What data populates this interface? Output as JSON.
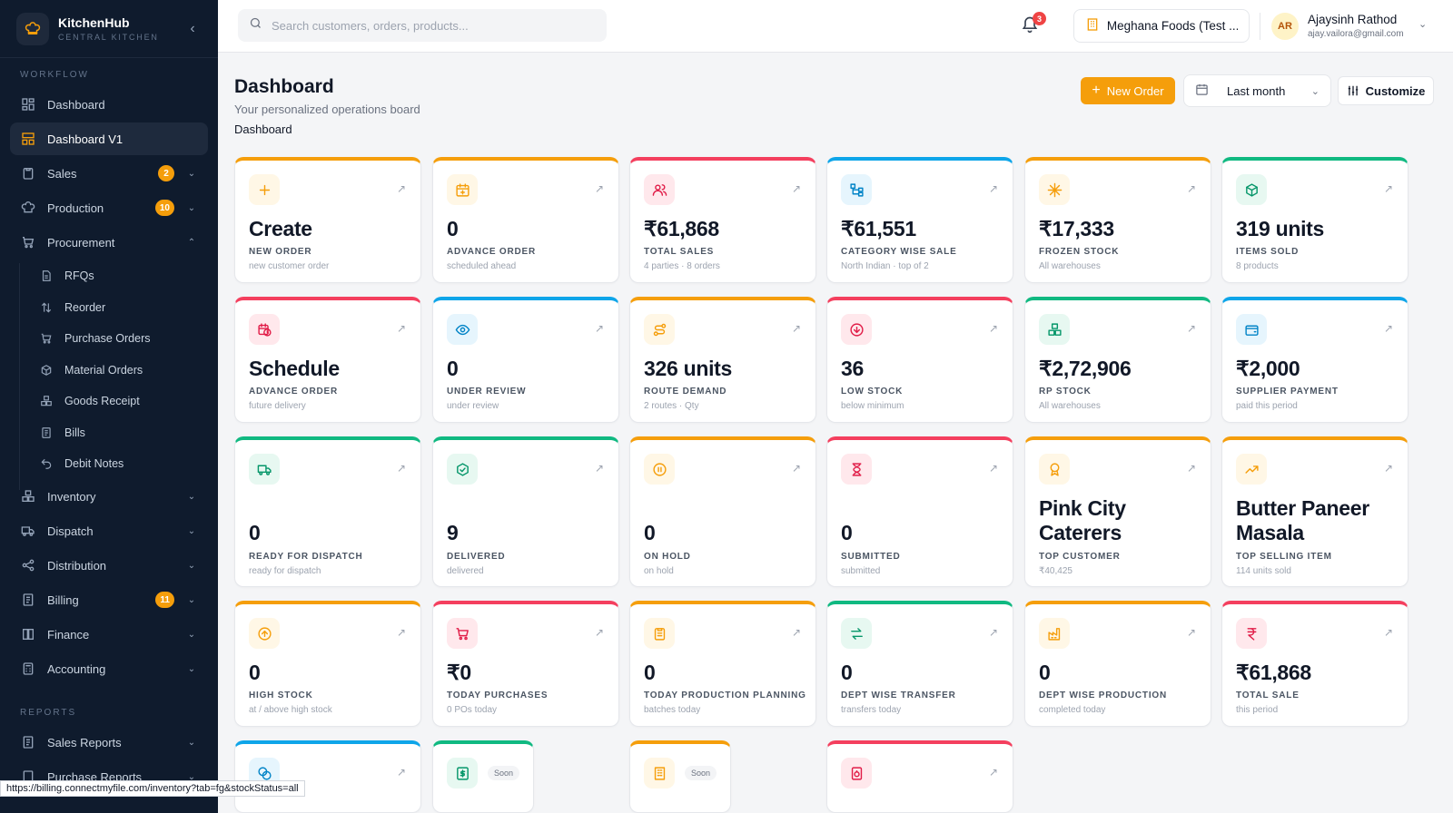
{
  "brand": {
    "name": "KitchenHub",
    "sub": "CENTRAL KITCHEN"
  },
  "sidebar": {
    "workflow_label": "WORKFLOW",
    "reports_label": "REPORTS",
    "items": [
      {
        "label": "Dashboard",
        "icon": "grid-icon"
      },
      {
        "label": "Dashboard V1",
        "icon": "layout-icon"
      },
      {
        "label": "Sales",
        "icon": "clipboard-icon",
        "badge": "2"
      },
      {
        "label": "Production",
        "icon": "chef-hat-icon",
        "badge": "10"
      },
      {
        "label": "Procurement",
        "icon": "cart-icon"
      },
      {
        "label": "Inventory",
        "icon": "boxes-icon"
      },
      {
        "label": "Dispatch",
        "icon": "truck-icon"
      },
      {
        "label": "Distribution",
        "icon": "share-icon"
      },
      {
        "label": "Billing",
        "icon": "receipt-icon",
        "badge": "11"
      },
      {
        "label": "Finance",
        "icon": "book-icon"
      },
      {
        "label": "Accounting",
        "icon": "calculator-icon"
      }
    ],
    "procurement_sub": [
      "RFQs",
      "Reorder",
      "Purchase Orders",
      "Material Orders",
      "Goods Receipt",
      "Bills",
      "Debit Notes"
    ],
    "reports": [
      "Sales Reports",
      "Purchase Reports"
    ]
  },
  "header": {
    "search_placeholder": "Search customers, orders, products...",
    "notifications": "3",
    "org": "Meghana Foods (Test ...",
    "avatar": "AR",
    "user_name": "Ajaysinh Rathod",
    "user_email": "ajay.vailora@gmail.com"
  },
  "page": {
    "title": "Dashboard",
    "subtitle": "Your personalized operations board",
    "breadcrumb": "Dashboard",
    "new_order": "New Order",
    "date_range": "Last month",
    "customize": "Customize"
  },
  "colors": {
    "orange": "#f59e0b",
    "red": "#f43f5e",
    "blue": "#0ea5e9",
    "green": "#10b981",
    "sidebar": "#0f1b2d"
  },
  "cards": [
    {
      "value": "Create",
      "label": "NEW ORDER",
      "sub": "new customer order",
      "accent": "orange",
      "icon": "plus-icon"
    },
    {
      "value": "0",
      "label": "ADVANCE ORDER",
      "sub": "scheduled ahead",
      "accent": "orange",
      "icon": "calendar-plus-icon"
    },
    {
      "value": "₹61,868",
      "label": "TOTAL SALES",
      "sub": "4 parties · 8 orders",
      "accent": "red",
      "icon": "users-icon"
    },
    {
      "value": "₹61,551",
      "label": "CATEGORY WISE SALE",
      "sub": "North Indian · top of 2",
      "accent": "blue",
      "icon": "tree-icon"
    },
    {
      "value": "₹17,333",
      "label": "FROZEN STOCK",
      "sub": "All warehouses",
      "accent": "orange",
      "icon": "snowflake-icon"
    },
    {
      "value": "319 units",
      "label": "ITEMS SOLD",
      "sub": "8 products",
      "accent": "green",
      "icon": "package-icon"
    },
    {
      "value": "Schedule",
      "label": "ADVANCE ORDER",
      "sub": "future delivery",
      "accent": "red",
      "icon": "calendar-clock-icon"
    },
    {
      "value": "0",
      "label": "UNDER REVIEW",
      "sub": "under review",
      "accent": "blue",
      "icon": "eye-icon"
    },
    {
      "value": "326 units",
      "label": "ROUTE DEMAND",
      "sub": "2 routes · Qty",
      "accent": "orange",
      "icon": "route-icon"
    },
    {
      "value": "36",
      "label": "LOW STOCK",
      "sub": "below minimum",
      "accent": "red",
      "icon": "arrow-down-circle-icon"
    },
    {
      "value": "₹2,72,906",
      "label": "RP STOCK",
      "sub": "All warehouses",
      "accent": "green",
      "icon": "boxes-icon"
    },
    {
      "value": "₹2,000",
      "label": "SUPPLIER PAYMENT",
      "sub": "paid this period",
      "accent": "blue",
      "icon": "wallet-icon"
    },
    {
      "value": "0",
      "label": "READY FOR DISPATCH",
      "sub": "ready for dispatch",
      "accent": "green",
      "icon": "truck-icon"
    },
    {
      "value": "9",
      "label": "DELIVERED",
      "sub": "delivered",
      "accent": "green",
      "icon": "package-check-icon"
    },
    {
      "value": "0",
      "label": "ON HOLD",
      "sub": "on hold",
      "accent": "orange",
      "icon": "pause-circle-icon"
    },
    {
      "value": "0",
      "label": "SUBMITTED",
      "sub": "submitted",
      "accent": "red",
      "icon": "hourglass-icon"
    },
    {
      "value": "Pink City Caterers",
      "label": "TOP CUSTOMER",
      "sub": "₹40,425",
      "accent": "orange",
      "icon": "award-icon"
    },
    {
      "value": "Butter Paneer Masala",
      "label": "TOP SELLING ITEM",
      "sub": "114 units sold",
      "accent": "orange",
      "icon": "trending-up-icon"
    },
    {
      "value": "0",
      "label": "HIGH STOCK",
      "sub": "at / above high stock",
      "accent": "orange",
      "icon": "arrow-up-circle-icon"
    },
    {
      "value": "₹0",
      "label": "TODAY PURCHASES",
      "sub": "0 POs today",
      "accent": "red",
      "icon": "shopping-cart-icon"
    },
    {
      "value": "0",
      "label": "TODAY PRODUCTION PLANNING",
      "sub": "batches today",
      "accent": "orange",
      "icon": "clipboard-list-icon"
    },
    {
      "value": "0",
      "label": "DEPT WISE TRANSFER",
      "sub": "transfers today",
      "accent": "green",
      "icon": "arrows-swap-icon"
    },
    {
      "value": "0",
      "label": "DEPT WISE PRODUCTION",
      "sub": "completed today",
      "accent": "orange",
      "icon": "factory-icon"
    },
    {
      "value": "₹61,868",
      "label": "TOTAL SALE",
      "sub": "this period",
      "accent": "red",
      "icon": "rupee-icon"
    },
    {
      "accent": "blue",
      "icon": "coins-icon"
    },
    {
      "accent": "green",
      "icon": "dollar-doc-icon",
      "soon": "Soon"
    },
    {
      "accent": "orange",
      "icon": "building-icon",
      "soon": "Soon"
    },
    {
      "accent": "red",
      "icon": "cycle-doc-icon"
    }
  ],
  "status_url": "https://billing.connectmyfile.com/inventory?tab=fg&stockStatus=all"
}
